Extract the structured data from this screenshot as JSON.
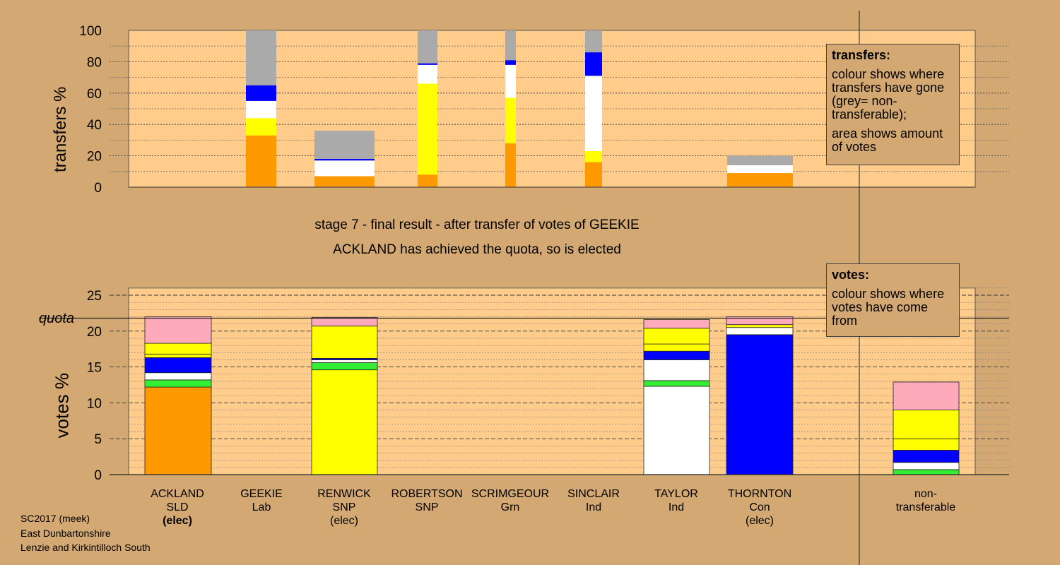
{
  "titles": {
    "stage": "stage 7 - final result - after transfer of votes of GEEKIE",
    "outcome": "ACKLAND has achieved the quota, so is elected"
  },
  "footer": [
    "SC2017 (meek)",
    "East Dunbartonshire",
    "Lenzie and Kirkintilloch South"
  ],
  "legend_transfers": {
    "heading": "transfers:",
    "line1": "colour shows where transfers have gone (grey= non-transferable);",
    "line2": "area shows amount of votes"
  },
  "legend_votes": {
    "heading": "votes:",
    "line1": "colour shows where votes have come from"
  },
  "colors": {
    "background": "#d4a872",
    "plot_background": "#ffcc8c",
    "SLD": "#ff9900",
    "SNP": "#ffff00",
    "Ind": "#ffffff",
    "Con": "#0000ff",
    "Grn": "#33ee33",
    "Lab": "#ffaabb",
    "nontransferable": "#aaaaaa"
  },
  "candidates": [
    {
      "name": "ACKLAND",
      "party": "SLD",
      "status": "(elec)",
      "bold": true
    },
    {
      "name": "GEEKIE",
      "party": "Lab",
      "status": ""
    },
    {
      "name": "RENWICK",
      "party": "SNP",
      "status": "(elec)"
    },
    {
      "name": "ROBERTSON",
      "party": "SNP",
      "status": ""
    },
    {
      "name": "SCRIMGEOUR",
      "party": "Grn",
      "status": ""
    },
    {
      "name": "SINCLAIR",
      "party": "Ind",
      "status": ""
    },
    {
      "name": "TAYLOR",
      "party": "Ind",
      "status": ""
    },
    {
      "name": "THORNTON",
      "party": "Con",
      "status": "(elec)"
    },
    {
      "name": "non-",
      "party": "transferable",
      "status": ""
    }
  ],
  "chart_data": [
    {
      "type": "bar",
      "ylabel": "transfers %",
      "ylim": [
        0,
        100
      ],
      "yticks": [
        0,
        20,
        40,
        60,
        80,
        100
      ],
      "grid": true,
      "note": "stacked bars; colour = destination of transfers, bar width = amount of votes",
      "bars": [
        {
          "candidate": "GEEKIE",
          "segments": [
            {
              "color": "SLD",
              "value": 33
            },
            {
              "color": "SNP",
              "value": 11
            },
            {
              "color": "Ind",
              "value": 11
            },
            {
              "color": "Con",
              "value": 10
            },
            {
              "color": "nontransferable",
              "value": 35
            }
          ]
        },
        {
          "candidate": "RENWICK",
          "segments": [
            {
              "color": "SLD",
              "value": 7
            },
            {
              "color": "Ind",
              "value": 10
            },
            {
              "color": "Con",
              "value": 1
            },
            {
              "color": "nontransferable",
              "value": 18
            }
          ]
        },
        {
          "candidate": "ROBERTSON",
          "segments": [
            {
              "color": "SLD",
              "value": 8
            },
            {
              "color": "SNP",
              "value": 58
            },
            {
              "color": "Ind",
              "value": 12
            },
            {
              "color": "Con",
              "value": 1
            },
            {
              "color": "nontransferable",
              "value": 21
            }
          ]
        },
        {
          "candidate": "SCRIMGEOUR",
          "segments": [
            {
              "color": "SLD",
              "value": 28
            },
            {
              "color": "SNP",
              "value": 29
            },
            {
              "color": "Ind",
              "value": 21
            },
            {
              "color": "Con",
              "value": 3
            },
            {
              "color": "nontransferable",
              "value": 19
            }
          ]
        },
        {
          "candidate": "SINCLAIR",
          "segments": [
            {
              "color": "SLD",
              "value": 16
            },
            {
              "color": "SNP",
              "value": 7
            },
            {
              "color": "Ind",
              "value": 48
            },
            {
              "color": "Con",
              "value": 15
            },
            {
              "color": "nontransferable",
              "value": 14
            }
          ]
        },
        {
          "candidate": "THORNTON",
          "segments": [
            {
              "color": "SLD",
              "value": 9
            },
            {
              "color": "Ind",
              "value": 5
            },
            {
              "color": "nontransferable",
              "value": 6
            }
          ]
        }
      ]
    },
    {
      "type": "bar",
      "ylabel": "votes %",
      "ylim": [
        0,
        26
      ],
      "yticks": [
        0,
        5,
        10,
        15,
        20,
        25
      ],
      "quota": 21.8,
      "quota_label": "quota",
      "grid": true,
      "note": "stacked bars; colour = source of votes",
      "bars": [
        {
          "candidate": "ACKLAND",
          "segments": [
            {
              "color": "SLD",
              "value": 12.2
            },
            {
              "color": "Grn",
              "value": 1.0
            },
            {
              "color": "Ind",
              "value": 1.0
            },
            {
              "color": "Con",
              "value": 2.1
            },
            {
              "color": "SNP",
              "value": 0.5
            },
            {
              "color": "SNP",
              "value": 1.5
            },
            {
              "color": "Lab",
              "value": 3.7
            }
          ]
        },
        {
          "candidate": "RENWICK",
          "segments": [
            {
              "color": "SNP",
              "value": 14.6
            },
            {
              "color": "Grn",
              "value": 1.0
            },
            {
              "color": "Ind",
              "value": 0.4
            },
            {
              "color": "Con",
              "value": 0.2
            },
            {
              "color": "SNP",
              "value": 4.5
            },
            {
              "color": "Lab",
              "value": 1.2
            }
          ]
        },
        {
          "candidate": "TAYLOR",
          "segments": [
            {
              "color": "Ind",
              "value": 12.3
            },
            {
              "color": "Grn",
              "value": 0.8
            },
            {
              "color": "Ind",
              "value": 2.9
            },
            {
              "color": "Con",
              "value": 1.2
            },
            {
              "color": "SNP",
              "value": 1.0
            },
            {
              "color": "SNP",
              "value": 2.2
            },
            {
              "color": "Lab",
              "value": 1.2
            }
          ]
        },
        {
          "candidate": "THORNTON",
          "segments": [
            {
              "color": "Con",
              "value": 19.5
            },
            {
              "color": "Ind",
              "value": 1.0
            },
            {
              "color": "SNP",
              "value": 0.4
            },
            {
              "color": "Lab",
              "value": 1.1
            }
          ]
        },
        {
          "candidate": "non-transferable",
          "segments": [
            {
              "color": "Grn",
              "value": 0.7
            },
            {
              "color": "Ind",
              "value": 1.0
            },
            {
              "color": "Con",
              "value": 1.7
            },
            {
              "color": "SNP",
              "value": 1.6
            },
            {
              "color": "SNP",
              "value": 4.0
            },
            {
              "color": "Lab",
              "value": 3.9
            }
          ]
        }
      ]
    }
  ]
}
